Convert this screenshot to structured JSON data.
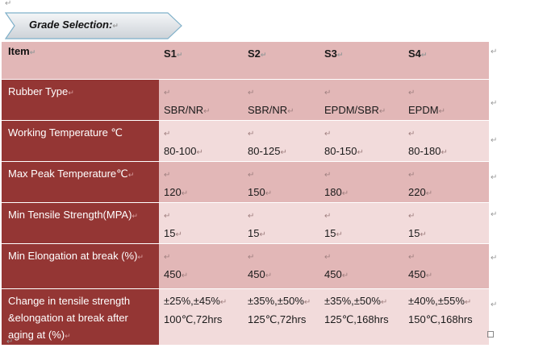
{
  "section_title": "Grade Selection:",
  "table": {
    "header": {
      "item": "Item",
      "grades": [
        "S1",
        "S2",
        "S3",
        "S4"
      ]
    },
    "rows": [
      {
        "label": "Rubber Type",
        "values": [
          "SBR/NR",
          "SBR/NR",
          "EPDM/SBR",
          "EPDM"
        ]
      },
      {
        "label": "Working Temperature ℃",
        "values": [
          "80-100",
          "80-125",
          "80-150",
          "80-180"
        ]
      },
      {
        "label": "Max Peak Temperature℃",
        "values": [
          "120",
          "150",
          "180",
          "220"
        ]
      },
      {
        "label": "Min Tensile Strength(MPA)",
        "values": [
          "15",
          "15",
          "15",
          "15"
        ]
      },
      {
        "label": "Min Elongation at break (%)",
        "values": [
          "450",
          "450",
          "450",
          "450"
        ]
      },
      {
        "label_lines": [
          "Change in tensile strength",
          "&elongation at break after",
          "aging at (%)"
        ],
        "values": [
          [
            "±25%,±45%",
            "100℃,72hrs"
          ],
          [
            "±35%,±50%",
            "125℃,72hrs"
          ],
          [
            "±35%,±50%",
            "125℃,168hrs"
          ],
          [
            "±40%,±55%",
            "150℃,168hrs"
          ]
        ]
      }
    ]
  },
  "colors": {
    "dark_label": "#943634",
    "pink_dark": "#e2b7b7",
    "pink_light": "#f2dbdb"
  }
}
